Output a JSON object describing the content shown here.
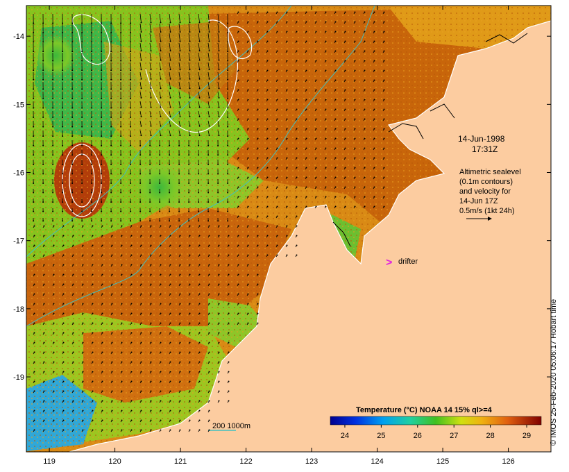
{
  "map": {
    "date_label": "14-Jun-1998",
    "time_label": "17:31Z",
    "altimetry_note": [
      "Altimetric sealevel",
      "(0.1m contours)",
      "and velocity for",
      "14-Jun 17Z",
      "0.5m/s (1kt 24h)"
    ],
    "drifter_symbol": ">",
    "drifter_label": "drifter",
    "depth_contour_label": "200  1000m",
    "credit": "© IMOS 25-Feb-2020 05:06:17 Hobart time",
    "lon_ticks": [
      "119",
      "120",
      "121",
      "122",
      "123",
      "124",
      "125",
      "126"
    ],
    "lat_ticks": [
      "-14",
      "-15",
      "-16",
      "-17",
      "-18",
      "-19"
    ],
    "colorbar": {
      "title": "Temperature (°C) NOAA 14 15% ql>=4",
      "tick_labels": [
        "24",
        "25",
        "26",
        "27",
        "28",
        "29"
      ]
    },
    "colors": {
      "land": "#fccca0",
      "sst_warm": "#c8650a",
      "sst_mid": "#e3a21a",
      "sst_cool": "#7cc828",
      "drifter": "#e020e0",
      "contour_depth": "#40c0c0",
      "contour_sealevel": "#ffffff"
    }
  },
  "chart_data": {
    "type": "heatmap",
    "title": "Temperature (°C) NOAA 14 15% ql>=4",
    "x_ticks": [
      119,
      120,
      121,
      122,
      123,
      124,
      125,
      126
    ],
    "y_ticks": [
      -14,
      -15,
      -16,
      -17,
      -18,
      -19
    ],
    "xlim": [
      118.65,
      126.65
    ],
    "ylim": [
      -20.1,
      -13.55
    ],
    "colorbar_range": [
      23.6,
      29.4
    ],
    "colorbar_ticks": [
      24,
      25,
      26,
      27,
      28,
      29
    ]
  }
}
